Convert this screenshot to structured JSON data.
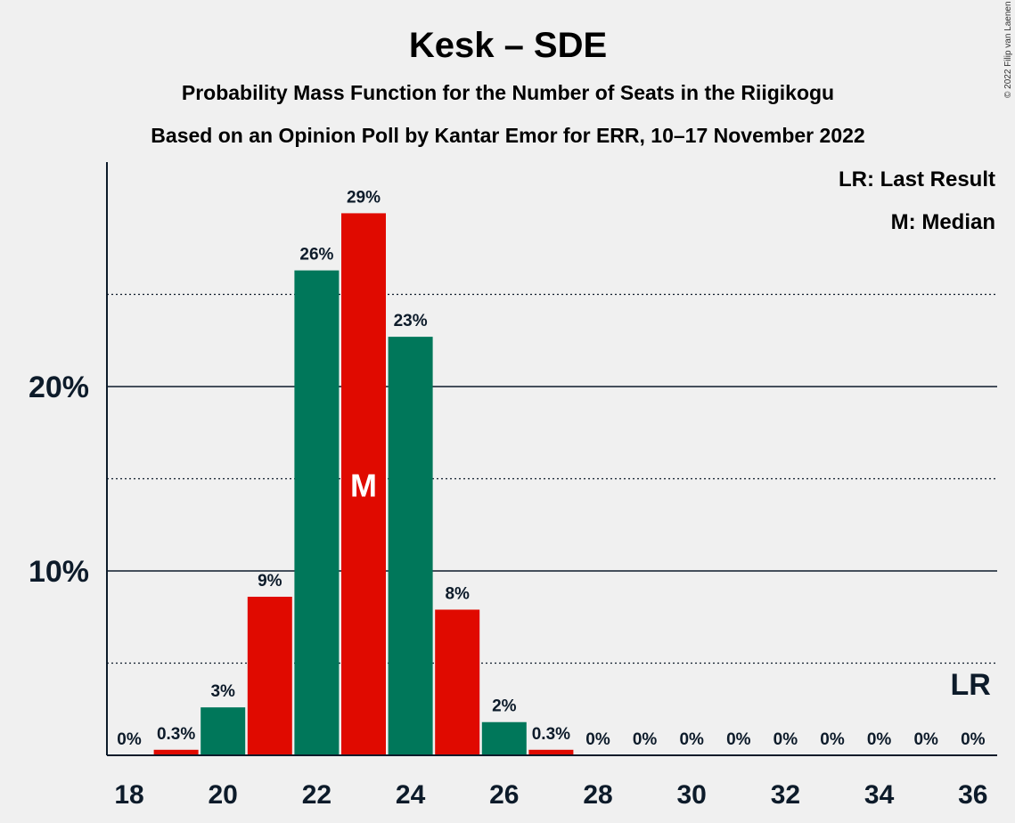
{
  "chart_data": {
    "type": "bar",
    "title": "Kesk – SDE",
    "subtitle_1": "Probability Mass Function for the Number of Seats in the Riigikogu",
    "subtitle_2": "Based on an Opinion Poll by Kantar Emor for ERR, 10–17 November 2022",
    "copyright": "© 2022 Filip van Laenen",
    "legend": [
      "LR: Last Result",
      "M: Median"
    ],
    "median_marker": "M",
    "last_result_marker": "LR",
    "x": [
      18,
      19,
      20,
      21,
      22,
      23,
      24,
      25,
      26,
      27,
      28,
      29,
      30,
      31,
      32,
      33,
      34,
      35,
      36
    ],
    "values": [
      0,
      0.3,
      2.6,
      8.6,
      26.3,
      29.4,
      22.7,
      7.9,
      1.8,
      0.3,
      0,
      0,
      0,
      0,
      0,
      0,
      0,
      0,
      0
    ],
    "labels": [
      "0%",
      "0.3%",
      "3%",
      "9%",
      "26%",
      "29%",
      "23%",
      "8%",
      "2%",
      "0.3%",
      "0%",
      "0%",
      "0%",
      "0%",
      "0%",
      "0%",
      "0%",
      "0%",
      "0%"
    ],
    "xticks": [
      "18",
      "20",
      "22",
      "24",
      "26",
      "28",
      "30",
      "32",
      "34",
      "36"
    ],
    "yticks": [
      "10%",
      "20%"
    ],
    "ylim": [
      0,
      32
    ],
    "median": 23,
    "last_result": 36,
    "colors": {
      "green": "#00775a",
      "red": "#e00a00",
      "text": "#0d1b2a"
    }
  }
}
